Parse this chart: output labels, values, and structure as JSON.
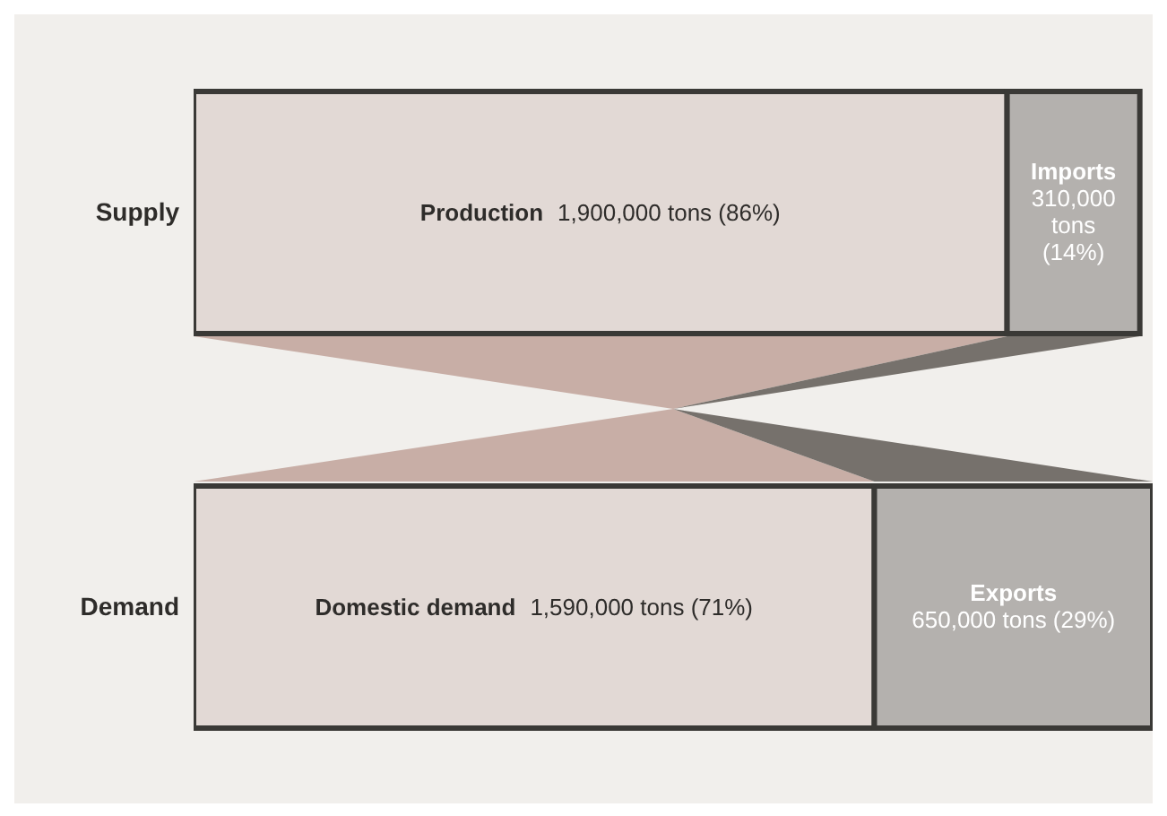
{
  "chart_data": {
    "type": "bar",
    "orientation": "horizontal",
    "stacked": true,
    "tick_labels": "y",
    "categories": [
      "Supply",
      "Demand"
    ],
    "series": [
      {
        "name": "Production",
        "color": "#e2d9d5",
        "values": [
          1900000,
          null
        ],
        "value_labels": [
          "1,900,000 tons (86%)",
          null
        ]
      },
      {
        "name": "Imports",
        "color": "#b4b1ae",
        "values": [
          310000,
          null
        ],
        "value_labels": [
          "310,000 tons (14%)",
          null
        ]
      },
      {
        "name": "Domestic demand",
        "color": "#e2d9d5",
        "values": [
          null,
          1590000
        ],
        "value_labels": [
          null,
          "1,590,000 tons (71%)"
        ]
      },
      {
        "name": "Exports",
        "color": "#b4b1ae",
        "values": [
          null,
          650000
        ],
        "value_labels": [
          null,
          "650,000 tons (29%)"
        ]
      }
    ]
  }
}
